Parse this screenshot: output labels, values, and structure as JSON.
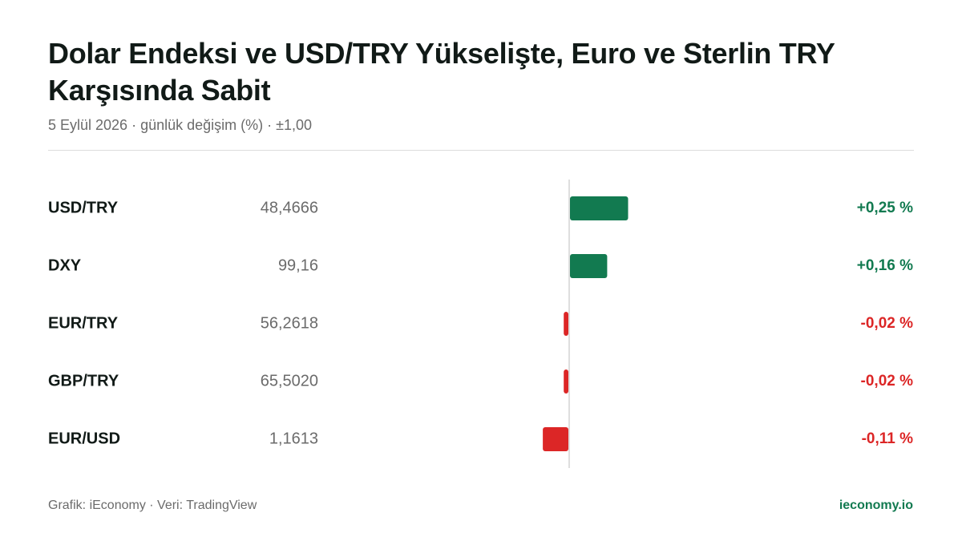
{
  "chart_data": {
    "type": "diverging-bar",
    "title": "Dolar Endeksi ve USD/TRY Yükselişte, Euro ve Sterlin TRY Karşısında Sabit",
    "subtitle": "5 Eylül 2026 · günlük değişim (%) · ±1,00",
    "categories": [
      "USD/TRY",
      "DXY",
      "EUR/TRY",
      "GBP/TRY",
      "EUR/USD"
    ],
    "prices": [
      "48,4666",
      "99,16",
      "56,2618",
      "65,5020",
      "1,1613"
    ],
    "values": [
      0.25,
      0.16,
      -0.02,
      -0.02,
      -0.11
    ],
    "value_labels": [
      "+0,25 %",
      "+0,16 %",
      "-0,02 %",
      "-0,02 %",
      "-0,11 %"
    ],
    "xlim": [
      -1,
      1
    ],
    "colors": {
      "positive": "#127a50",
      "negative": "#dc2626"
    },
    "footer_left": "Grafik: iEconomy · Veri: TradingView",
    "footer_right": "ieconomy.io"
  }
}
